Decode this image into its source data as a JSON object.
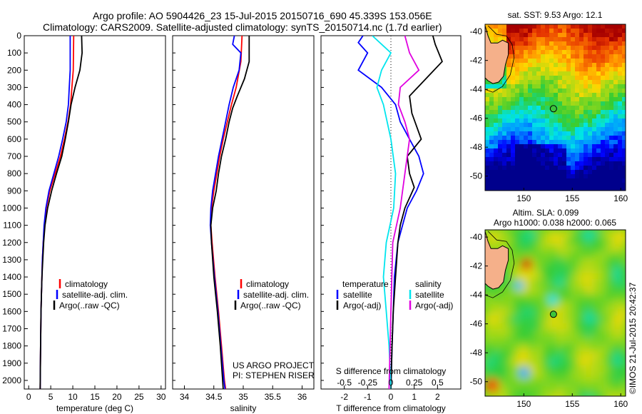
{
  "header": {
    "line1": "Argo profile: AO 5904426_23 15-Jul-2015 20150716_690 45.339S 153.056E",
    "line2": "Climatology: CARS2009. Satellite-adjusted climatology: synTS_20150714.nc (1.7d earlier)"
  },
  "colors": {
    "climatology": "#ff0000",
    "satellite": "#0000ff",
    "argo": "#000000",
    "salinity_satellite": "#00e5ee",
    "salinity_argo": "#e000e0"
  },
  "chart_data": [
    {
      "type": "line",
      "panel": "temperature",
      "xlabel": "temperature (deg C)",
      "ylim": [
        2050,
        0
      ],
      "xlim": [
        -1,
        31
      ],
      "xticks": [
        "0",
        "5",
        "10",
        "15",
        "20",
        "25",
        "30"
      ],
      "yticks": [
        "0",
        "100",
        "200",
        "300",
        "400",
        "500",
        "600",
        "700",
        "800",
        "900",
        "1000",
        "1100",
        "1200",
        "1300",
        "1400",
        "1500",
        "1600",
        "1700",
        "1800",
        "1900",
        "2000"
      ],
      "legend": [
        "climatology",
        "satellite-adj. clim.",
        "Argo(..raw -QC)"
      ],
      "series": [
        {
          "name": "climatology",
          "color": "#ff0000",
          "points": [
            [
              10.2,
              0
            ],
            [
              10.1,
              200
            ],
            [
              9.8,
              300
            ],
            [
              9.5,
              400
            ],
            [
              8.9,
              500
            ],
            [
              8.1,
              600
            ],
            [
              7.2,
              700
            ],
            [
              6.0,
              800
            ],
            [
              4.8,
              900
            ],
            [
              4.0,
              1000
            ],
            [
              3.6,
              1100
            ],
            [
              3.3,
              1200
            ],
            [
              3.1,
              1300
            ],
            [
              3.0,
              1400
            ],
            [
              2.9,
              1500
            ],
            [
              2.8,
              1600
            ],
            [
              2.7,
              1800
            ],
            [
              2.6,
              2050
            ]
          ]
        },
        {
          "name": "satellite-adj. clim.",
          "color": "#0000ff",
          "points": [
            [
              9.4,
              0
            ],
            [
              9.4,
              200
            ],
            [
              9.2,
              300
            ],
            [
              9.0,
              400
            ],
            [
              8.5,
              500
            ],
            [
              7.7,
              600
            ],
            [
              6.8,
              700
            ],
            [
              5.7,
              800
            ],
            [
              4.6,
              900
            ],
            [
              3.9,
              1000
            ],
            [
              3.5,
              1100
            ],
            [
              3.3,
              1200
            ],
            [
              3.1,
              1300
            ],
            [
              3.0,
              1400
            ],
            [
              2.9,
              1500
            ],
            [
              2.8,
              1600
            ],
            [
              2.7,
              1800
            ],
            [
              2.6,
              2050
            ]
          ]
        },
        {
          "name": "Argo(..raw -QC)",
          "color": "#000000",
          "points": [
            [
              12.0,
              0
            ],
            [
              12.1,
              100
            ],
            [
              11.6,
              200
            ],
            [
              10.5,
              300
            ],
            [
              9.6,
              400
            ],
            [
              9.0,
              500
            ],
            [
              8.3,
              600
            ],
            [
              7.5,
              700
            ],
            [
              6.3,
              800
            ],
            [
              5.2,
              900
            ],
            [
              4.3,
              1000
            ],
            [
              3.7,
              1100
            ],
            [
              3.4,
              1200
            ],
            [
              3.2,
              1300
            ],
            [
              3.0,
              1400
            ],
            [
              2.9,
              1500
            ],
            [
              2.8,
              1600
            ],
            [
              2.7,
              1800
            ],
            [
              2.6,
              2050
            ]
          ]
        }
      ]
    },
    {
      "type": "line",
      "panel": "salinity",
      "xlabel": "salinity",
      "ylim": [
        2050,
        0
      ],
      "xlim": [
        33.8,
        36.2
      ],
      "xticks": [
        "34",
        "34.5",
        "35",
        "35.5",
        "36"
      ],
      "legend": [
        "climatology",
        "satellite-adj. clim.",
        "Argo(..raw -QC)"
      ],
      "annotation": [
        "US ARGO PROJECT",
        "PI: STEPHEN RISER"
      ],
      "series": [
        {
          "name": "climatology",
          "color": "#ff0000",
          "points": [
            [
              34.98,
              0
            ],
            [
              34.96,
              150
            ],
            [
              34.88,
              300
            ],
            [
              34.8,
              400
            ],
            [
              34.73,
              500
            ],
            [
              34.66,
              600
            ],
            [
              34.6,
              700
            ],
            [
              34.55,
              800
            ],
            [
              34.5,
              900
            ],
            [
              34.46,
              1000
            ],
            [
              34.45,
              1100
            ],
            [
              34.47,
              1200
            ],
            [
              34.52,
              1400
            ],
            [
              34.58,
              1600
            ],
            [
              34.63,
              1800
            ],
            [
              34.68,
              2000
            ],
            [
              34.7,
              2050
            ]
          ]
        },
        {
          "name": "satellite-adj. clim.",
          "color": "#0000ff",
          "points": [
            [
              34.85,
              0
            ],
            [
              34.82,
              50
            ],
            [
              34.96,
              100
            ],
            [
              34.93,
              200
            ],
            [
              34.83,
              300
            ],
            [
              34.76,
              400
            ],
            [
              34.7,
              500
            ],
            [
              34.64,
              600
            ],
            [
              34.58,
              700
            ],
            [
              34.53,
              800
            ],
            [
              34.48,
              900
            ],
            [
              34.45,
              1000
            ],
            [
              34.44,
              1100
            ],
            [
              34.46,
              1200
            ],
            [
              34.51,
              1400
            ],
            [
              34.57,
              1600
            ],
            [
              34.62,
              1800
            ],
            [
              34.67,
              2000
            ],
            [
              34.69,
              2050
            ]
          ]
        },
        {
          "name": "Argo(..raw -QC)",
          "color": "#000000",
          "points": [
            [
              35.1,
              0
            ],
            [
              35.1,
              150
            ],
            [
              35.02,
              250
            ],
            [
              34.9,
              350
            ],
            [
              34.82,
              420
            ],
            [
              34.76,
              500
            ],
            [
              34.7,
              600
            ],
            [
              34.63,
              700
            ],
            [
              34.58,
              800
            ],
            [
              34.54,
              900
            ],
            [
              34.48,
              1000
            ],
            [
              34.45,
              1100
            ],
            [
              34.46,
              1200
            ],
            [
              34.5,
              1400
            ],
            [
              34.56,
              1600
            ],
            [
              34.61,
              1800
            ],
            [
              34.65,
              2000
            ],
            [
              34.66,
              2050
            ]
          ]
        }
      ]
    },
    {
      "type": "line",
      "panel": "difference",
      "xlabel": "T difference from climatology",
      "xlabel_top": "S difference from climatology",
      "ylim": [
        2050,
        0
      ],
      "xlim": [
        -3,
        3
      ],
      "xticks": [
        "-2",
        "-1",
        "0",
        "1",
        "2"
      ],
      "xticks_s": [
        "-0.5",
        "-0.25",
        "0",
        "0.25",
        "0.5"
      ],
      "legend_groups": [
        {
          "heading": "temperature",
          "entries": [
            "satellite",
            "Argo(-adj)"
          ]
        },
        {
          "heading": "salinity",
          "entries": [
            "satellite",
            "Argo(-adj)"
          ]
        }
      ],
      "series": [
        {
          "name": "temperature satellite",
          "color": "#0000ff",
          "points": [
            [
              -1.2,
              0
            ],
            [
              -1.4,
              40
            ],
            [
              -1.0,
              100
            ],
            [
              -1.4,
              200
            ],
            [
              -0.4,
              300
            ],
            [
              0.2,
              400
            ],
            [
              0.4,
              500
            ],
            [
              0.8,
              600
            ],
            [
              1.2,
              700
            ],
            [
              1.4,
              800
            ],
            [
              1.1,
              900
            ],
            [
              0.7,
              1000
            ],
            [
              0.5,
              1100
            ],
            [
              0.3,
              1200
            ],
            [
              0.15,
              1400
            ],
            [
              0.1,
              1600
            ],
            [
              0.05,
              1800
            ],
            [
              0.0,
              2050
            ]
          ]
        },
        {
          "name": "temperature Argo(-adj)",
          "color": "#000000",
          "points": [
            [
              1.8,
              0
            ],
            [
              1.9,
              50
            ],
            [
              2.2,
              150
            ],
            [
              1.5,
              250
            ],
            [
              0.8,
              350
            ],
            [
              0.9,
              450
            ],
            [
              1.3,
              600
            ],
            [
              0.7,
              700
            ],
            [
              0.8,
              800
            ],
            [
              1.0,
              880
            ],
            [
              0.6,
              1000
            ],
            [
              0.4,
              1100
            ],
            [
              0.3,
              1200
            ],
            [
              0.2,
              1400
            ],
            [
              0.1,
              1600
            ],
            [
              0.05,
              1800
            ],
            [
              0.0,
              2050
            ]
          ]
        },
        {
          "name": "salinity satellite",
          "color": "#00e5ee",
          "points": [
            [
              -0.2,
              0
            ],
            [
              0.0,
              100
            ],
            [
              -0.1,
              200
            ],
            [
              -0.15,
              300
            ],
            [
              -0.08,
              400
            ],
            [
              0.0,
              600
            ],
            [
              0.05,
              800
            ],
            [
              0.03,
              1000
            ],
            [
              -0.05,
              1200
            ],
            [
              -0.08,
              1400
            ],
            [
              -0.05,
              1600
            ],
            [
              -0.02,
              1800
            ],
            [
              0.0,
              2050
            ]
          ]
        },
        {
          "name": "salinity Argo(-adj)",
          "color": "#e000e0",
          "points": [
            [
              0.15,
              0
            ],
            [
              0.2,
              100
            ],
            [
              0.3,
              200
            ],
            [
              0.1,
              300
            ],
            [
              0.08,
              400
            ],
            [
              0.15,
              500
            ],
            [
              0.2,
              600
            ],
            [
              0.15,
              800
            ],
            [
              0.1,
              1000
            ],
            [
              0.02,
              1200
            ],
            [
              0.0,
              1600
            ],
            [
              -0.02,
              2050
            ]
          ]
        }
      ]
    },
    {
      "type": "heatmap",
      "panel": "sst_map",
      "title": "sat. SST: 9.53 Argo: 12.1",
      "xticks": [
        "150",
        "155",
        "160"
      ],
      "yticks": [
        "-40",
        "-42",
        "-44",
        "-46",
        "-48",
        "-50"
      ],
      "marker": {
        "lon": 153.056,
        "lat": -45.339
      },
      "xlim": [
        146,
        160.5
      ],
      "ylim": [
        -51,
        -39.5
      ]
    },
    {
      "type": "heatmap",
      "panel": "sla_map",
      "title": "Altim. SLA: 0.099",
      "subtitle": "Argo h1000: 0.038 h2000: 0.065",
      "xticks": [
        "150",
        "155",
        "160"
      ],
      "yticks": [
        "-40",
        "-42",
        "-44",
        "-46",
        "-48",
        "-50"
      ],
      "marker": {
        "lon": 153.056,
        "lat": -45.339
      },
      "xlim": [
        146,
        160.5
      ],
      "ylim": [
        -51,
        -39.5
      ]
    }
  ],
  "credit": "©IMOS 21-Jul-2015 20:42:37"
}
